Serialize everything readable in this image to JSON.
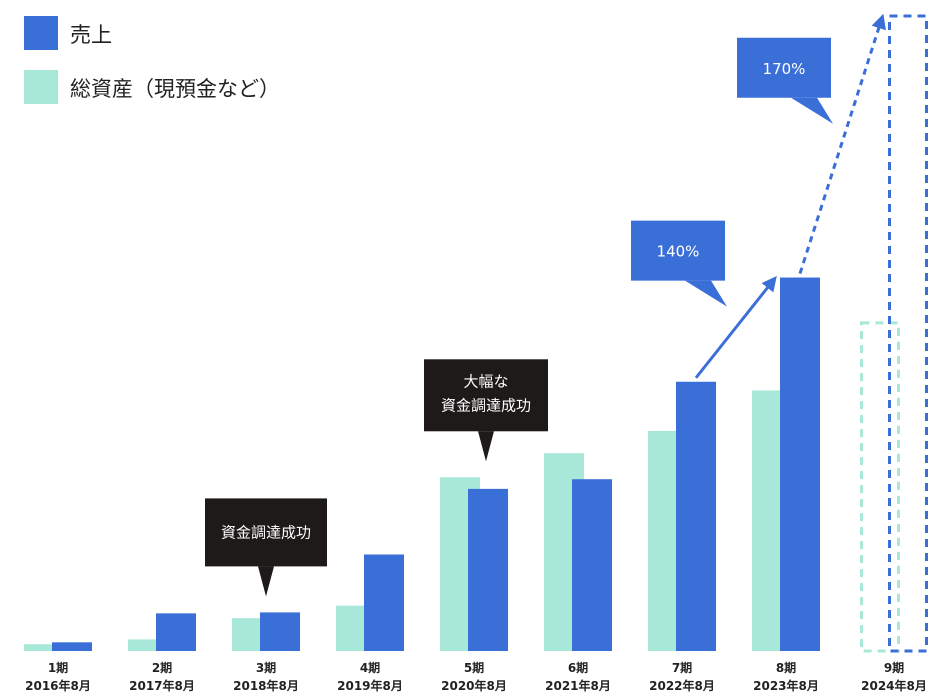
{
  "chart_data": {
    "type": "bar",
    "title": "",
    "xlabel": "",
    "ylabel": "",
    "ylim": [
      0,
      700
    ],
    "grid": false,
    "legend_position": "top-left",
    "categories": [
      {
        "period": "1期",
        "date": "2016年8月"
      },
      {
        "period": "2期",
        "date": "2017年8月"
      },
      {
        "period": "3期",
        "date": "2018年8月"
      },
      {
        "period": "4期",
        "date": "2019年8月"
      },
      {
        "period": "5期",
        "date": "2020年8月"
      },
      {
        "period": "6期",
        "date": "2021年8月"
      },
      {
        "period": "7期",
        "date": "2022年8月"
      },
      {
        "period": "8期",
        "date": "2023年8月"
      },
      {
        "period": "9期",
        "date": "2024年8月"
      }
    ],
    "series": [
      {
        "name": "総資産（現預金など）",
        "color": "#a8e8d8",
        "values": [
          7,
          12,
          34,
          47,
          180,
          205,
          228,
          270,
          340
        ],
        "projected": [
          false,
          false,
          false,
          false,
          false,
          false,
          false,
          false,
          true
        ]
      },
      {
        "name": "売上",
        "color": "#3b6fd8",
        "values": [
          9,
          39,
          40,
          100,
          168,
          178,
          279,
          387,
          658
        ],
        "projected": [
          false,
          false,
          false,
          false,
          false,
          false,
          false,
          false,
          true
        ]
      }
    ],
    "annotations": [
      {
        "type": "callout",
        "text": [
          "資金調達成功"
        ],
        "category_index": 2,
        "color": "#1f1a1a"
      },
      {
        "type": "callout",
        "text": [
          "大幅な",
          "資金調達成功"
        ],
        "category_index": 4,
        "color": "#1f1a1a"
      },
      {
        "type": "growth",
        "text": "140%",
        "from_index": 6,
        "to_index": 7,
        "style": "solid",
        "color": "#3b6fd8"
      },
      {
        "type": "growth",
        "text": "170%",
        "from_index": 7,
        "to_index": 8,
        "style": "dotted",
        "color": "#3b6fd8"
      }
    ]
  }
}
